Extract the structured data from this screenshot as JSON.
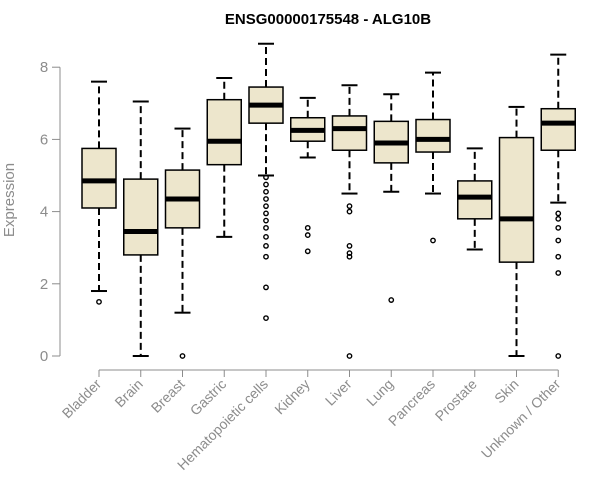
{
  "chart_data": {
    "type": "boxplot",
    "title": "ENSG00000175548 - ALG10B",
    "xlabel": "",
    "ylabel": "Expression",
    "ylim": [
      0,
      8.5
    ],
    "yticks": [
      0,
      2,
      4,
      6,
      8
    ],
    "colors": {
      "box_fill": "#ede6cc",
      "box_stroke": "#000000",
      "median": "#000000",
      "axis": "#8c8c8c",
      "tick_text": "#8c8c8c",
      "title": "#000000"
    },
    "categories": [
      "Bladder",
      "Brain",
      "Breast",
      "Gastric",
      "Hematopoietic cells",
      "Kidney",
      "Liver",
      "Lung",
      "Pancreas",
      "Prostate",
      "Skin",
      "Unknown / Other"
    ],
    "boxes": [
      {
        "name": "Bladder",
        "whisker_low": 1.8,
        "q1": 4.1,
        "median": 4.85,
        "q3": 5.75,
        "whisker_high": 7.6,
        "outliers": [
          1.5
        ]
      },
      {
        "name": "Brain",
        "whisker_low": 0.0,
        "q1": 2.8,
        "median": 3.45,
        "q3": 4.9,
        "whisker_high": 7.05,
        "outliers": []
      },
      {
        "name": "Breast",
        "whisker_low": 1.2,
        "q1": 3.55,
        "median": 4.35,
        "q3": 5.15,
        "whisker_high": 6.3,
        "outliers": [
          0.0
        ]
      },
      {
        "name": "Gastric",
        "whisker_low": 3.3,
        "q1": 5.3,
        "median": 5.95,
        "q3": 7.1,
        "whisker_high": 7.7,
        "outliers": []
      },
      {
        "name": "Hematopoietic cells",
        "whisker_low": 5.0,
        "q1": 6.45,
        "median": 6.95,
        "q3": 7.45,
        "whisker_high": 8.65,
        "outliers": [
          4.95,
          4.75,
          4.55,
          4.35,
          4.15,
          3.95,
          3.75,
          3.55,
          3.3,
          3.05,
          2.75,
          1.9,
          1.05
        ]
      },
      {
        "name": "Kidney",
        "whisker_low": 5.5,
        "q1": 5.95,
        "median": 6.25,
        "q3": 6.6,
        "whisker_high": 7.15,
        "outliers": [
          3.55,
          3.35,
          2.9
        ]
      },
      {
        "name": "Liver",
        "whisker_low": 4.5,
        "q1": 5.7,
        "median": 6.3,
        "q3": 6.65,
        "whisker_high": 7.5,
        "outliers": [
          4.15,
          4.0,
          3.05,
          2.85,
          2.75,
          0.0
        ]
      },
      {
        "name": "Lung",
        "whisker_low": 4.55,
        "q1": 5.35,
        "median": 5.9,
        "q3": 6.5,
        "whisker_high": 7.25,
        "outliers": [
          1.55
        ]
      },
      {
        "name": "Pancreas",
        "whisker_low": 4.5,
        "q1": 5.65,
        "median": 6.0,
        "q3": 6.55,
        "whisker_high": 7.85,
        "outliers": [
          3.2
        ]
      },
      {
        "name": "Prostate",
        "whisker_low": 2.95,
        "q1": 3.8,
        "median": 4.4,
        "q3": 4.85,
        "whisker_high": 5.75,
        "outliers": []
      },
      {
        "name": "Skin",
        "whisker_low": 0.0,
        "q1": 2.6,
        "median": 3.8,
        "q3": 6.05,
        "whisker_high": 6.9,
        "outliers": []
      },
      {
        "name": "Unknown / Other",
        "whisker_low": 4.25,
        "q1": 5.7,
        "median": 6.45,
        "q3": 6.85,
        "whisker_high": 8.35,
        "outliers": [
          3.95,
          3.8,
          3.55,
          3.2,
          2.75,
          2.3,
          0.0
        ]
      }
    ]
  }
}
